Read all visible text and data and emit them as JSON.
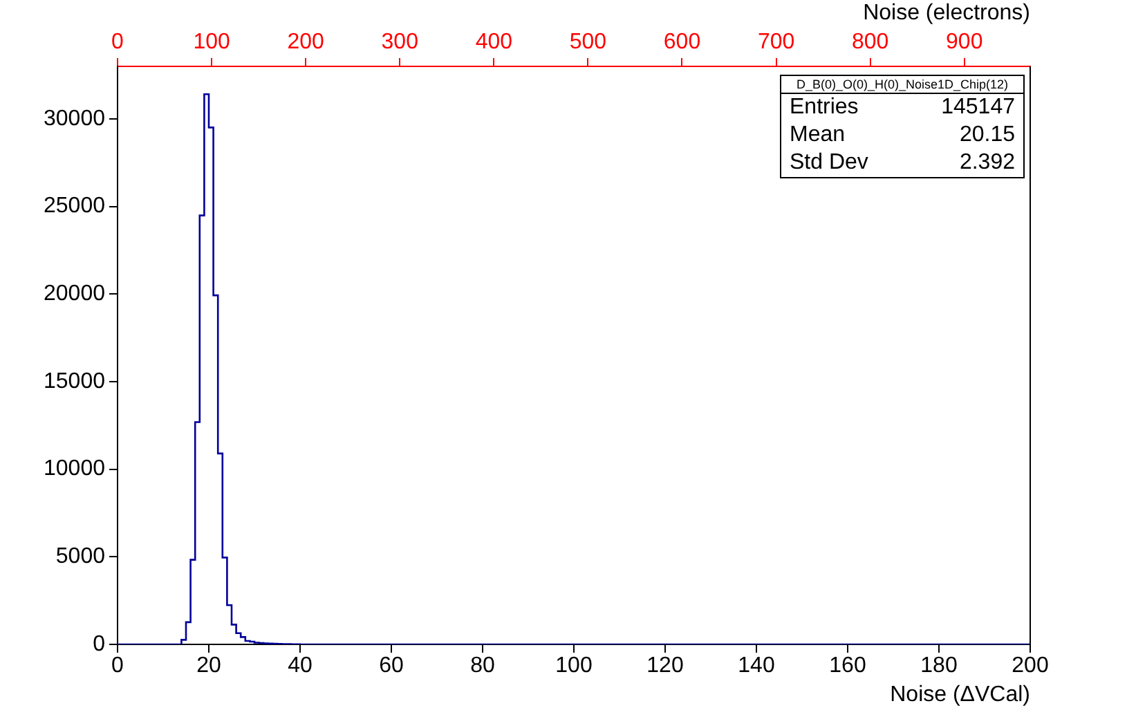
{
  "chart_data": {
    "type": "histogram",
    "title": "D_B(0)_O(0)_H(0)_Noise1D_Chip(12)",
    "xlabel": "Noise (ΔVCal)",
    "x2label": "Noise (electrons)",
    "bins": [
      0,
      14,
      15,
      16,
      17,
      18,
      19,
      20,
      21,
      22,
      23,
      24,
      25,
      26,
      27,
      28,
      29,
      30,
      31,
      32,
      33,
      34,
      35,
      36,
      38,
      40,
      200
    ],
    "series": [
      {
        "color": "#000099",
        "values": [
          0,
          260,
          1270,
          4830,
          12690,
          24490,
          31410,
          29510,
          19930,
          10900,
          4960,
          2240,
          1130,
          640,
          420,
          200,
          160,
          100,
          80,
          60,
          50,
          40,
          30,
          20,
          10,
          0
        ]
      }
    ],
    "xlim": [
      0,
      200
    ],
    "xticks": [
      0,
      20,
      40,
      60,
      80,
      100,
      120,
      140,
      160,
      180,
      200
    ],
    "x2lim": [
      0,
      970
    ],
    "x2ticks": [
      0,
      100,
      200,
      300,
      400,
      500,
      600,
      700,
      800,
      900
    ],
    "ylim": [
      0,
      33000
    ],
    "yticks": [
      0,
      5000,
      10000,
      15000,
      20000,
      25000,
      30000
    ],
    "grid": false,
    "legend": false,
    "annotations": [
      "Entries 145147",
      "Mean 20.15",
      "Std Dev 2.392"
    ]
  }
}
